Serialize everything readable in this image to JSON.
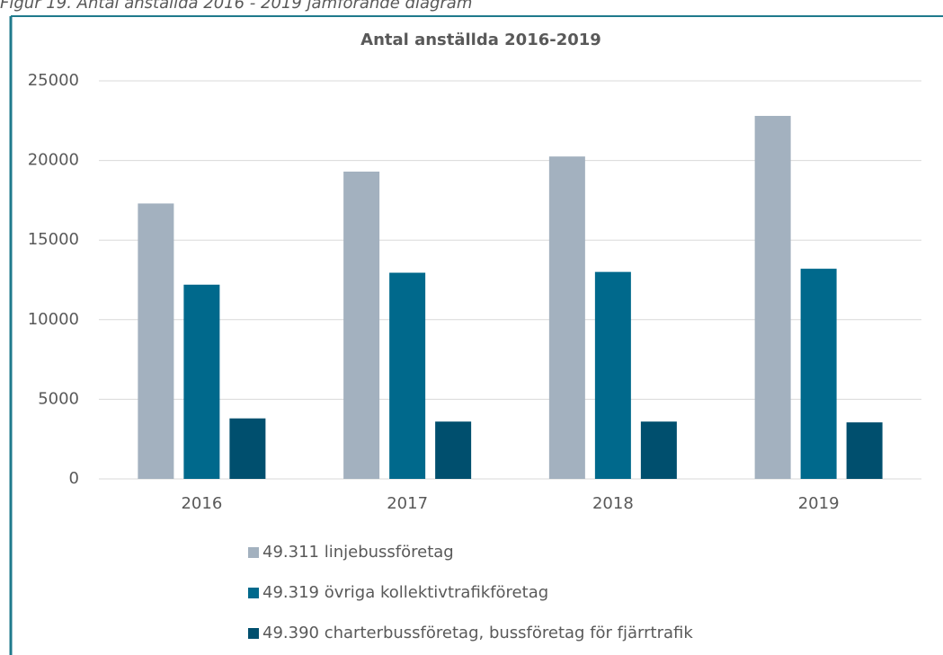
{
  "caption": "Figur 19. Antal anställda 2016 - 2019 jämförande diagram",
  "chart_data": {
    "type": "bar",
    "title": "Antal anställda 2016-2019",
    "categories": [
      "2016",
      "2017",
      "2018",
      "2019"
    ],
    "series": [
      {
        "name": "49.311 linjebussföretag",
        "color": "#a3b1bf",
        "values": [
          17300,
          19300,
          20250,
          22800
        ]
      },
      {
        "name": "49.319 övriga kollektivtrafikföretag",
        "color": "#00698c",
        "values": [
          12200,
          12950,
          13000,
          13200
        ]
      },
      {
        "name": "49.390 charterbussföretag, bussföretag för fjärrtrafik",
        "color": "#004f6e",
        "values": [
          3800,
          3600,
          3600,
          3550
        ]
      }
    ],
    "ylim": [
      0,
      25000
    ],
    "yticks": [
      0,
      5000,
      10000,
      15000,
      20000,
      25000
    ],
    "grid": true,
    "legend": "bottom"
  }
}
